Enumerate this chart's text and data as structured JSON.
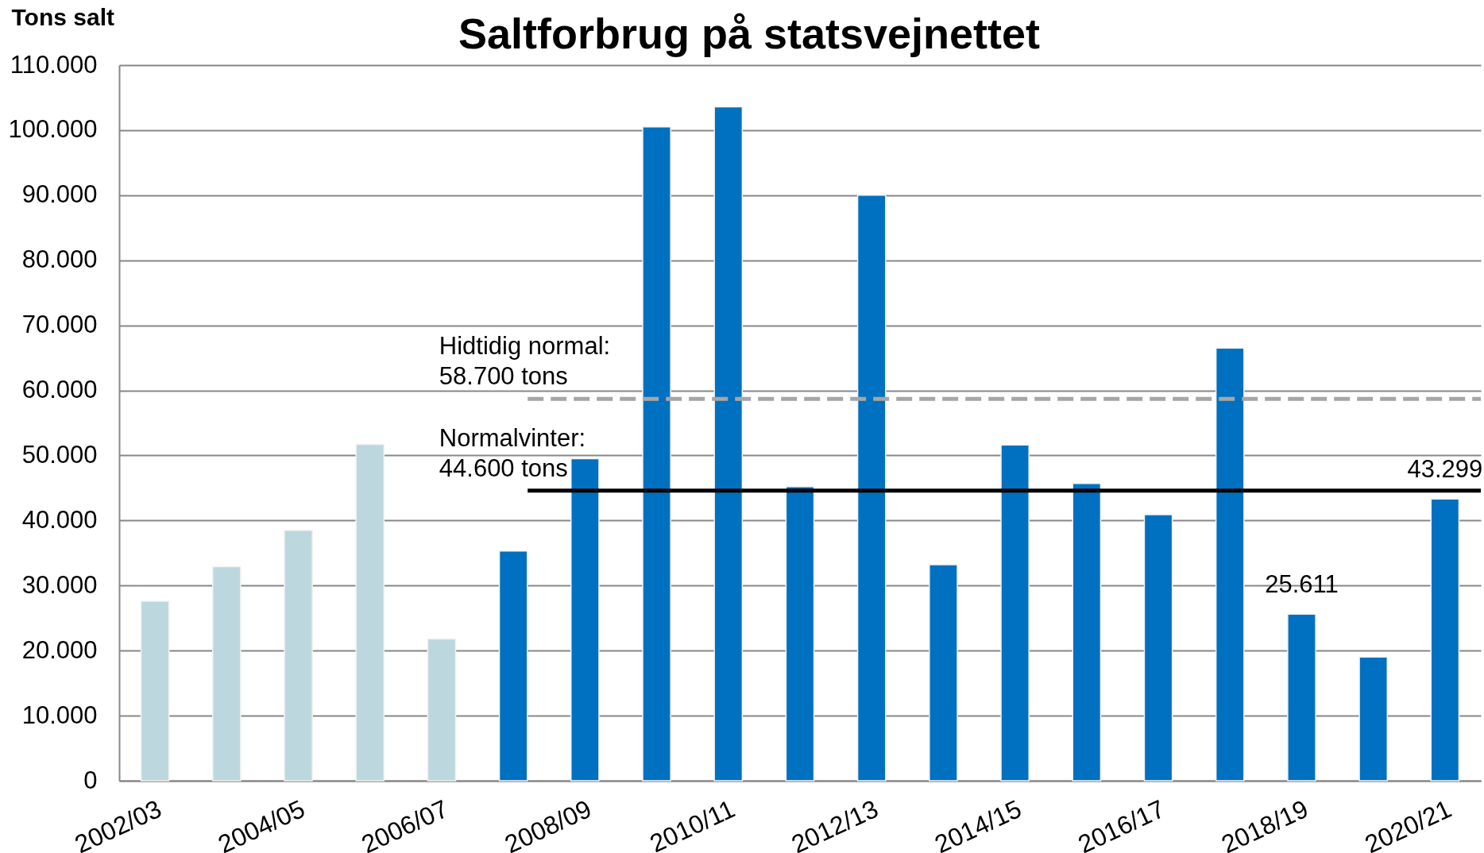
{
  "chart_data": {
    "type": "bar",
    "title": "Saltforbrug på statsvejnettet",
    "ylabel": "Tons salt",
    "categories": [
      "2002/03",
      null,
      "2004/05",
      null,
      "2006/07",
      null,
      "2008/09",
      null,
      "2010/11",
      null,
      "2012/13",
      null,
      "2014/15",
      null,
      "2016/17",
      null,
      "2018/19",
      null,
      "2020/21"
    ],
    "values": [
      27600,
      32900,
      38500,
      51700,
      21800,
      35300,
      49500,
      100500,
      103600,
      45200,
      90000,
      33200,
      51600,
      45700,
      40900,
      66500,
      25611,
      19000,
      43299
    ],
    "colors": [
      "#bdd7de",
      "#bdd7de",
      "#bdd7de",
      "#bdd7de",
      "#bdd7de",
      "#0070c0",
      "#0070c0",
      "#0070c0",
      "#0070c0",
      "#0070c0",
      "#0070c0",
      "#0070c0",
      "#0070c0",
      "#0070c0",
      "#0070c0",
      "#0070c0",
      "#0070c0",
      "#0070c0",
      "#0070c0"
    ],
    "value_labels": [
      null,
      null,
      null,
      null,
      null,
      null,
      null,
      null,
      null,
      null,
      null,
      null,
      null,
      null,
      null,
      null,
      "25.611",
      null,
      "43.299"
    ],
    "ylim": [
      0,
      110000
    ],
    "yticks": [
      0,
      {
        "value": 10000,
        "label": "10.000"
      },
      {
        "value": 20000,
        "label": "20.000"
      },
      {
        "value": 30000,
        "label": "30.000"
      },
      {
        "value": 40000,
        "label": "40.000"
      },
      {
        "value": 50000,
        "label": "50.000"
      },
      {
        "value": 60000,
        "label": "60.000"
      },
      {
        "value": 70000,
        "label": "70.000"
      },
      {
        "value": 80000,
        "label": "80.000"
      },
      {
        "value": 90000,
        "label": "90.000"
      },
      {
        "value": 100000,
        "label": "100.000"
      },
      {
        "value": 110000,
        "label": "110.000"
      }
    ],
    "grid": "y",
    "ref_lines": [
      {
        "axis": "y",
        "value": 58700,
        "label": "Hidtidig normal:\n58.700 tons",
        "color": "#a6a6a6",
        "line_style": "dashed"
      },
      {
        "axis": "y",
        "value": 44600,
        "label": "Normalvinter:\n44.600 tons",
        "color": "#000000",
        "line_style": "solid"
      }
    ]
  }
}
